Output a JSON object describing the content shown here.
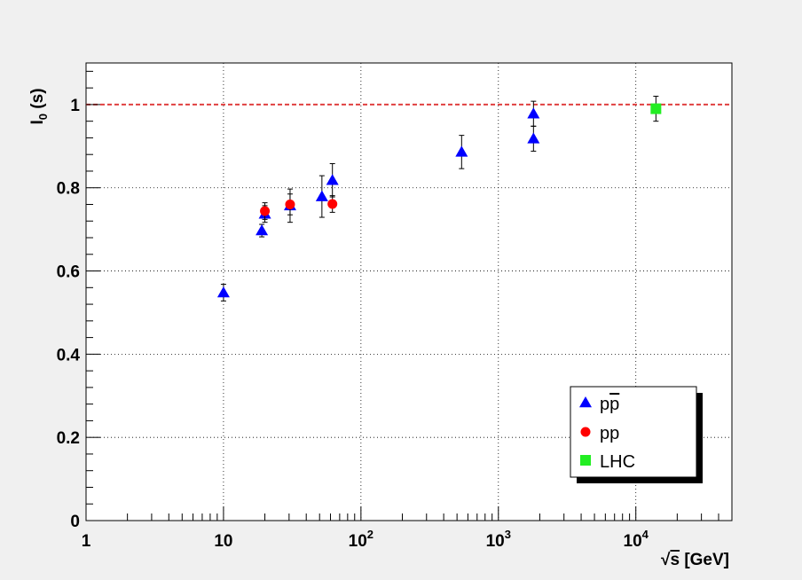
{
  "chart_data": {
    "type": "scatter",
    "title": "",
    "x_scale": "log",
    "xlim": [
      1,
      50000
    ],
    "ylim": [
      0,
      1.1
    ],
    "grid": true,
    "x_ticks": [
      {
        "value": 1,
        "base": "1",
        "exp": ""
      },
      {
        "value": 10,
        "base": "10",
        "exp": ""
      },
      {
        "value": 100,
        "base": "10",
        "exp": "2"
      },
      {
        "value": 1000,
        "base": "10",
        "exp": "3"
      },
      {
        "value": 10000,
        "base": "10",
        "exp": "4"
      }
    ],
    "y_ticks": [
      {
        "value": 0,
        "label": "0"
      },
      {
        "value": 0.2,
        "label": "0.2"
      },
      {
        "value": 0.4,
        "label": "0.4"
      },
      {
        "value": 0.6,
        "label": "0.6"
      },
      {
        "value": 0.8,
        "label": "0.8"
      },
      {
        "value": 1,
        "label": "1"
      }
    ],
    "xlabel": {
      "root_symbol": "√",
      "var": "s",
      "units": " [GeV]"
    },
    "ylabel": {
      "main": "I",
      "sub": "0",
      "rest": " (s)"
    },
    "reference_line": {
      "y": 1.0,
      "color": "#e04040",
      "style": "dashed"
    },
    "legend": {
      "placement": "bottom-right",
      "entries": [
        {
          "label": "pp",
          "overline": "p",
          "series": "ppbar"
        },
        {
          "label": "pp",
          "series": "pp"
        },
        {
          "label": "LHC",
          "series": "lhc"
        }
      ]
    },
    "series": [
      {
        "id": "ppbar",
        "marker": "triangle",
        "color": "#0000ff",
        "points": [
          {
            "x": 10,
            "y": 0.548,
            "err": 0.02
          },
          {
            "x": 19,
            "y": 0.697,
            "err": 0.015
          },
          {
            "x": 20,
            "y": 0.737,
            "err": 0.02
          },
          {
            "x": 30.5,
            "y": 0.757,
            "err": 0.04
          },
          {
            "x": 52,
            "y": 0.779,
            "err": 0.05
          },
          {
            "x": 62,
            "y": 0.818,
            "err": 0.04
          },
          {
            "x": 540,
            "y": 0.886,
            "err": 0.04
          },
          {
            "x": 1800,
            "y": 0.918,
            "err": 0.03
          },
          {
            "x": 1800,
            "y": 0.978,
            "err": 0.03
          }
        ]
      },
      {
        "id": "pp",
        "marker": "circle",
        "color": "#ff0000",
        "points": [
          {
            "x": 20,
            "y": 0.744,
            "err": 0.02
          },
          {
            "x": 30.5,
            "y": 0.76,
            "err": 0.025
          },
          {
            "x": 62,
            "y": 0.761,
            "err": 0.02
          }
        ]
      },
      {
        "id": "lhc",
        "marker": "square",
        "color": "#22ee22",
        "points": [
          {
            "x": 14000,
            "y": 0.99,
            "err": 0.03
          }
        ]
      }
    ]
  }
}
